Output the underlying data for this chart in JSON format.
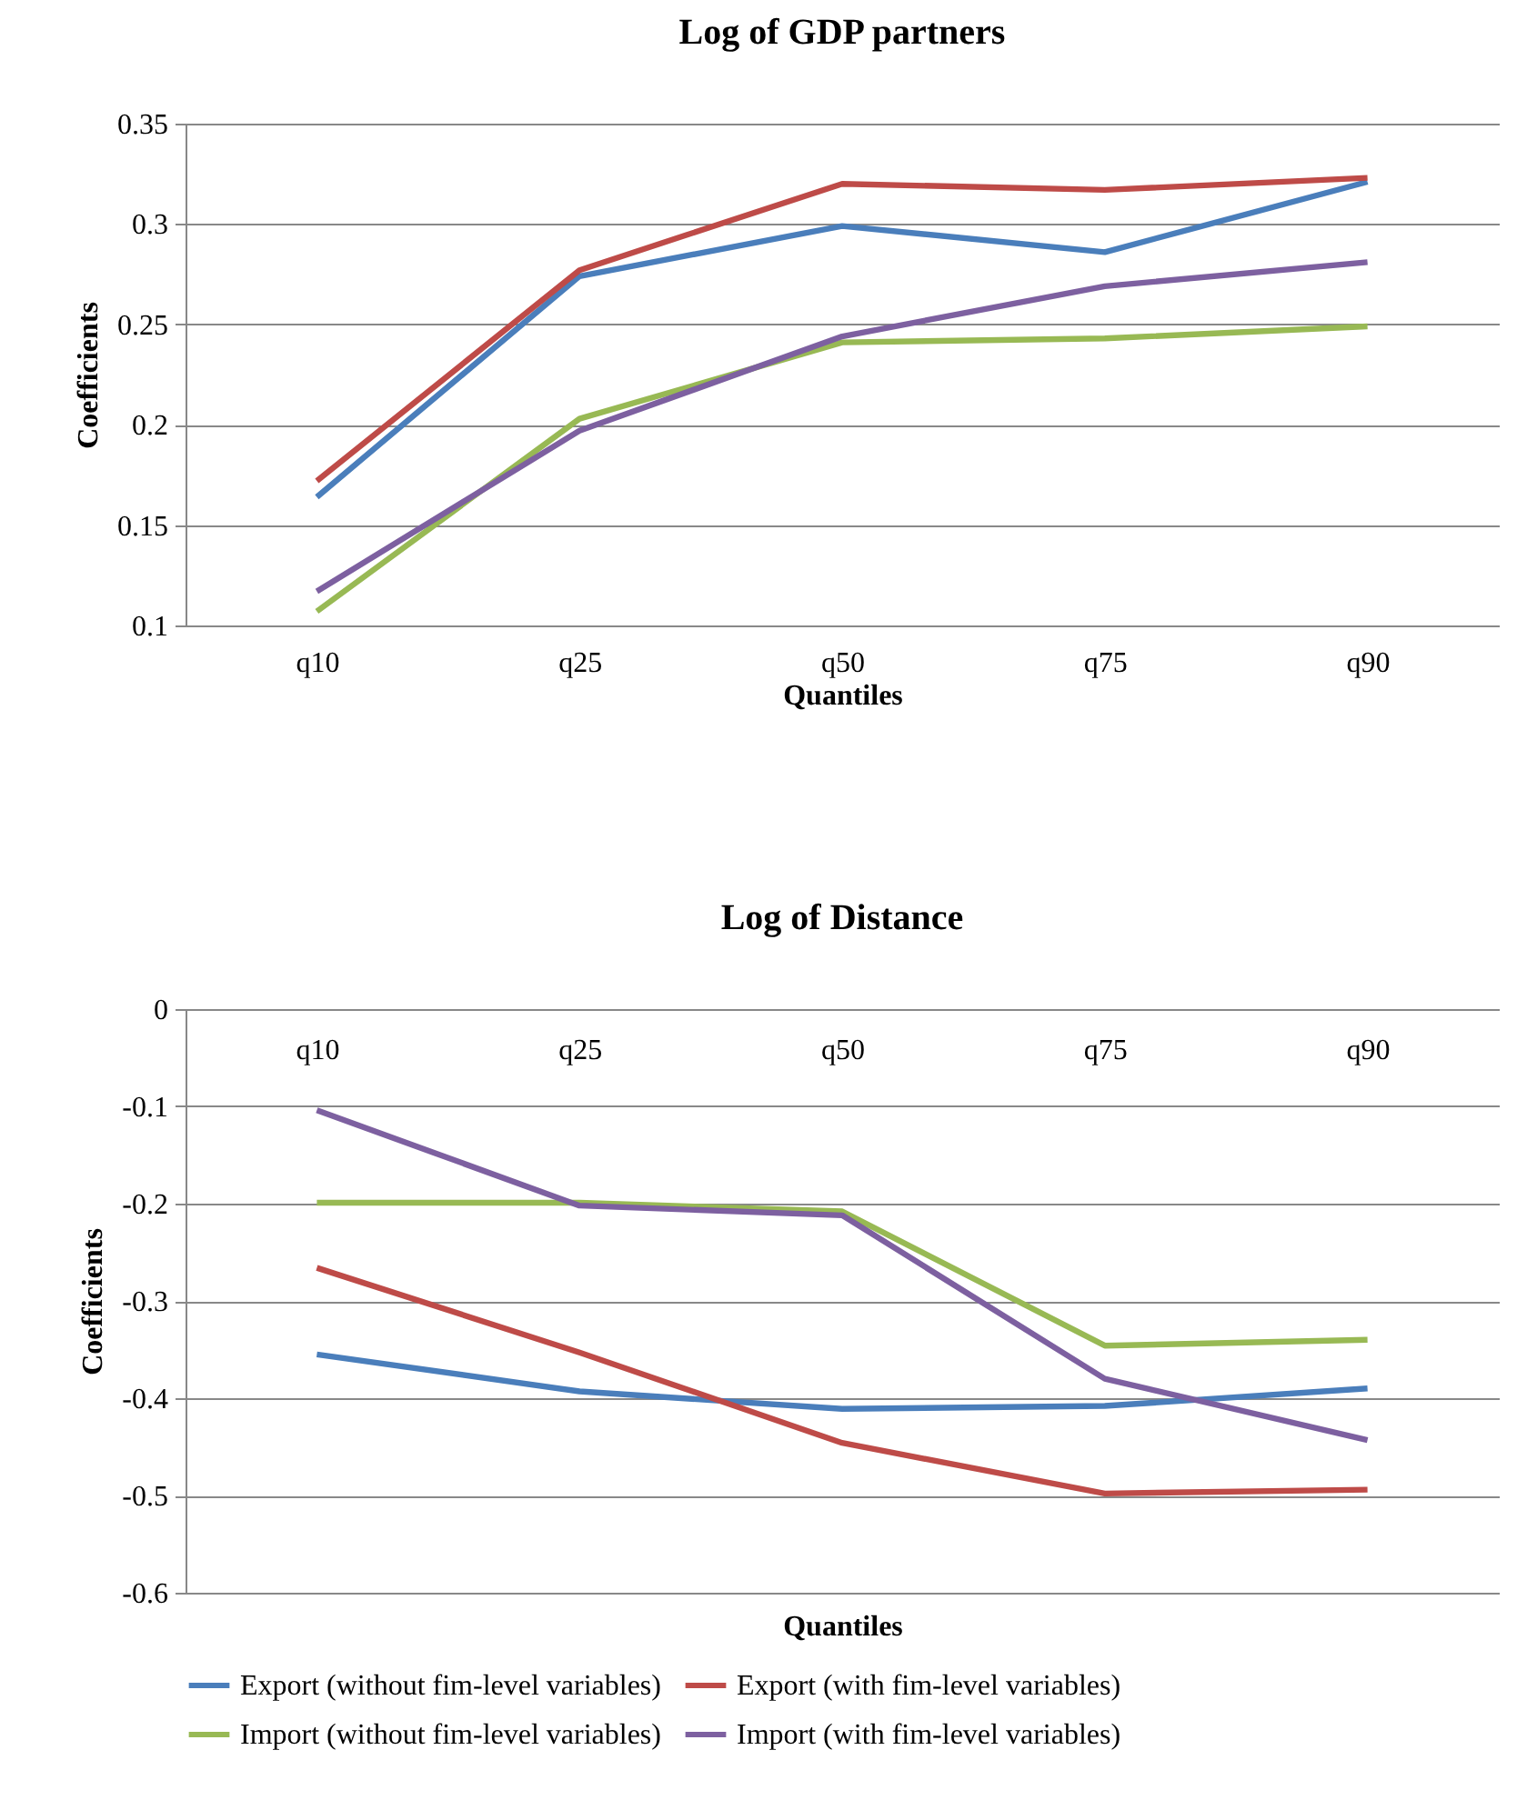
{
  "chart_data": [
    {
      "type": "line",
      "title": "Log of GDP partners",
      "xlabel": "Quantiles",
      "ylabel": "Coefficients",
      "categories": [
        "q10",
        "q25",
        "q50",
        "q75",
        "q90"
      ],
      "series": [
        {
          "name": "Export (without fim-level variables)",
          "color": "#4a7ebb",
          "values": [
            0.164,
            0.274,
            0.299,
            0.286,
            0.321
          ]
        },
        {
          "name": "Export (with fim-level variables)",
          "color": "#be4b48",
          "values": [
            0.172,
            0.277,
            0.32,
            0.317,
            0.323
          ]
        },
        {
          "name": "Import (without fim-level variables)",
          "color": "#98b954",
          "values": [
            0.107,
            0.203,
            0.241,
            0.243,
            0.249
          ]
        },
        {
          "name": "Import (with fim-level variables)",
          "color": "#7d60a0",
          "values": [
            0.117,
            0.197,
            0.244,
            0.269,
            0.281
          ]
        }
      ],
      "ylim": [
        0.1,
        0.35
      ],
      "yticks": [
        0.1,
        0.15,
        0.2,
        0.25,
        0.3,
        0.35
      ],
      "grid": "y",
      "legend": "bottom",
      "line_style": "solid",
      "marker": "none"
    },
    {
      "type": "line",
      "title": "Log of Distance",
      "xlabel": "Quantiles",
      "ylabel": "Coefficients",
      "categories": [
        "q10",
        "q25",
        "q50",
        "q75",
        "q90"
      ],
      "series": [
        {
          "name": "Export (without fim-level variables)",
          "color": "#4a7ebb",
          "values": [
            -0.355,
            -0.393,
            -0.411,
            -0.408,
            -0.39
          ]
        },
        {
          "name": "Export (with fim-level variables)",
          "color": "#be4b48",
          "values": [
            -0.266,
            -0.353,
            -0.446,
            -0.498,
            -0.494
          ]
        },
        {
          "name": "Import (without fim-level variables)",
          "color": "#98b954",
          "values": [
            -0.199,
            -0.199,
            -0.208,
            -0.346,
            -0.34
          ]
        },
        {
          "name": "Import (with fim-level variables)",
          "color": "#7d60a0",
          "values": [
            -0.104,
            -0.202,
            -0.212,
            -0.38,
            -0.443
          ]
        }
      ],
      "ylim": [
        -0.6,
        0
      ],
      "yticks": [
        -0.6,
        -0.5,
        -0.4,
        -0.3,
        -0.2,
        -0.1,
        0
      ],
      "grid": "y",
      "legend": "bottom",
      "line_style": "solid",
      "marker": "none"
    }
  ]
}
